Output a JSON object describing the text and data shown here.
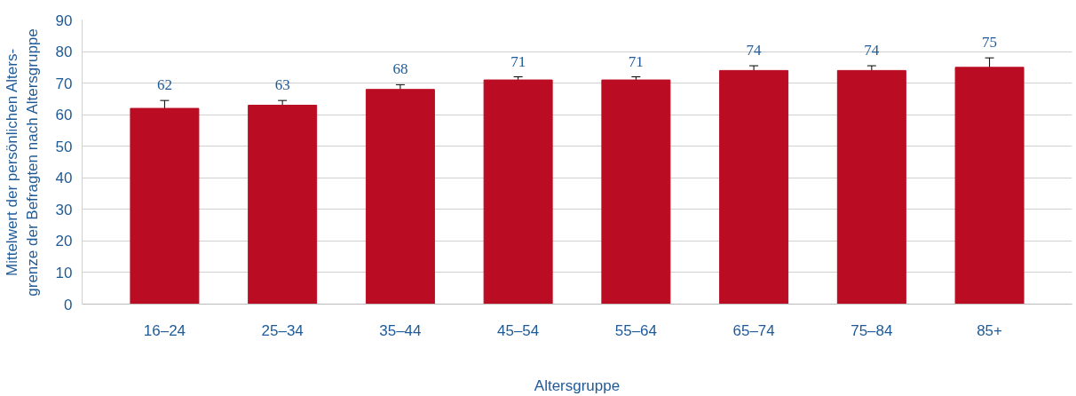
{
  "chart_data": {
    "type": "bar",
    "xlabel": "Altersgruppe",
    "ylabel": "Mittelwert der persönlichen Alters-\ngrenze der Befragten nach Altersgruppe",
    "categories": [
      "16–24",
      "25–34",
      "35–44",
      "45–54",
      "55–64",
      "65–74",
      "75–84",
      "85+"
    ],
    "values": [
      62,
      63,
      68,
      71,
      71,
      74,
      74,
      75
    ],
    "errors": [
      2.5,
      1.5,
      1.5,
      1,
      1,
      1.5,
      1.5,
      3
    ],
    "color": "#ba0c22",
    "ylim": [
      0,
      90
    ],
    "yticks": [
      0,
      10,
      20,
      30,
      40,
      50,
      60,
      70,
      80,
      90
    ],
    "grid": "y",
    "data_labels": true
  }
}
